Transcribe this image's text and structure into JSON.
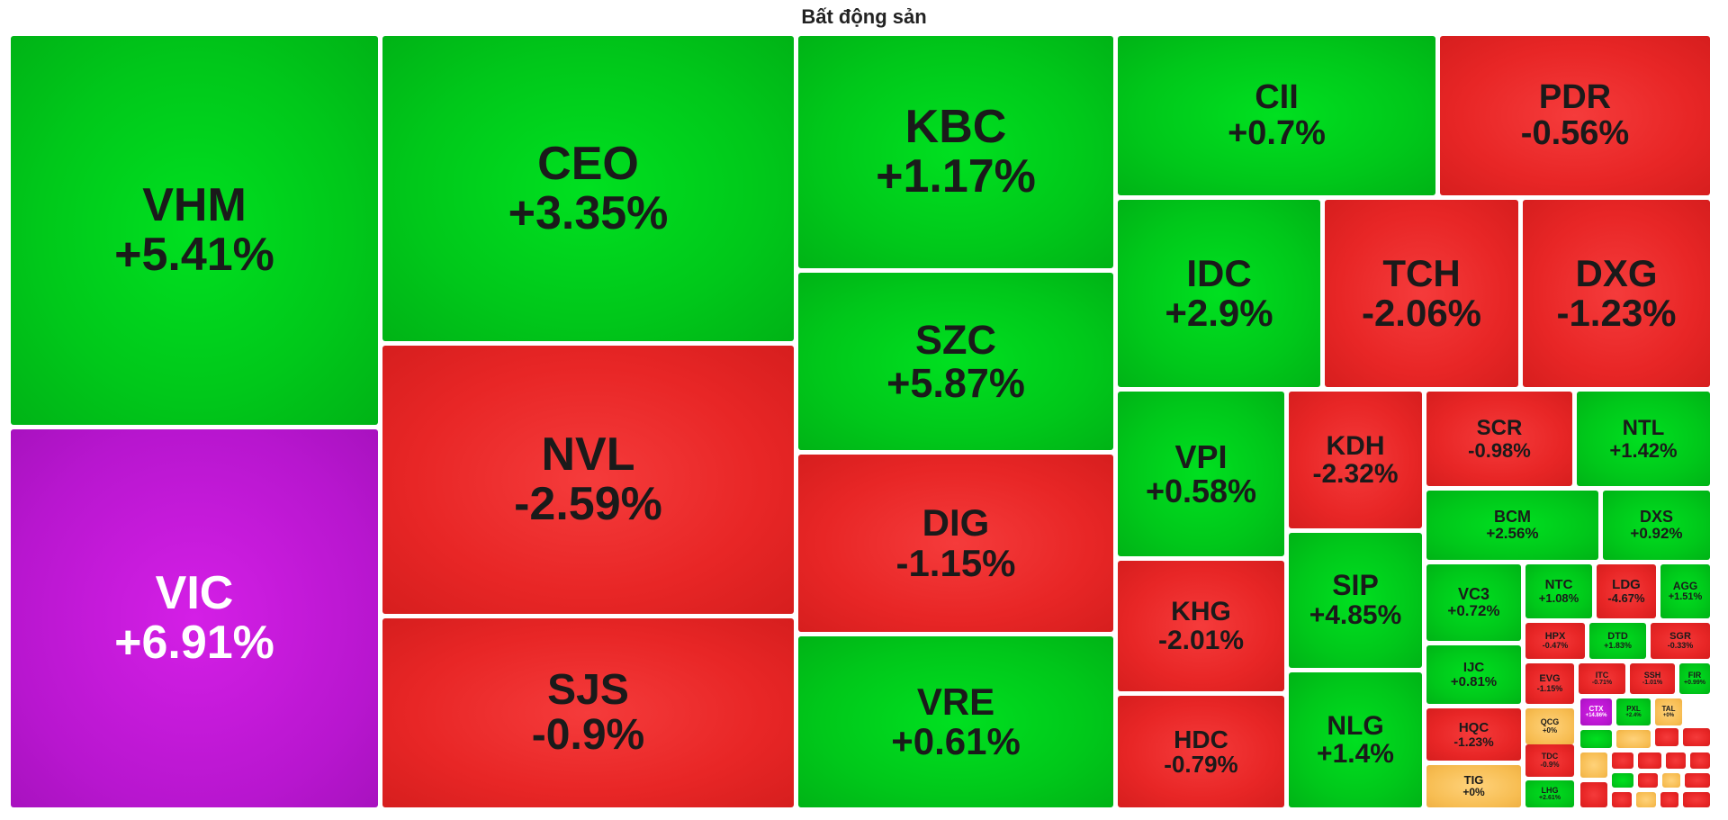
{
  "title": "Bất động sản",
  "colors": {
    "up": "#00c81a",
    "down": "#e82626",
    "ceiling": "#b816cf",
    "reference": "#f7bd52"
  },
  "chart_data": {
    "type": "treemap",
    "title": "Bất động sản",
    "items": [
      {
        "symbol": "VHM",
        "change": "+5.41%",
        "value": 5.41
      },
      {
        "symbol": "VIC",
        "change": "+6.91%",
        "value": 6.91
      },
      {
        "symbol": "CEO",
        "change": "+3.35%",
        "value": 3.35
      },
      {
        "symbol": "NVL",
        "change": "-2.59%",
        "value": -2.59
      },
      {
        "symbol": "SJS",
        "change": "-0.9%",
        "value": -0.9
      },
      {
        "symbol": "KBC",
        "change": "+1.17%",
        "value": 1.17
      },
      {
        "symbol": "SZC",
        "change": "+5.87%",
        "value": 5.87
      },
      {
        "symbol": "DIG",
        "change": "-1.15%",
        "value": -1.15
      },
      {
        "symbol": "VRE",
        "change": "+0.61%",
        "value": 0.61
      },
      {
        "symbol": "CII",
        "change": "+0.7%",
        "value": 0.7
      },
      {
        "symbol": "PDR",
        "change": "-0.56%",
        "value": -0.56
      },
      {
        "symbol": "IDC",
        "change": "+2.9%",
        "value": 2.9
      },
      {
        "symbol": "TCH",
        "change": "-2.06%",
        "value": -2.06
      },
      {
        "symbol": "DXG",
        "change": "-1.23%",
        "value": -1.23
      },
      {
        "symbol": "VPI",
        "change": "+0.58%",
        "value": 0.58
      },
      {
        "symbol": "KDH",
        "change": "-2.32%",
        "value": -2.32
      },
      {
        "symbol": "SCR",
        "change": "-0.98%",
        "value": -0.98
      },
      {
        "symbol": "NTL",
        "change": "+1.42%",
        "value": 1.42
      },
      {
        "symbol": "BCM",
        "change": "+2.56%",
        "value": 2.56
      },
      {
        "symbol": "DXS",
        "change": "+0.92%",
        "value": 0.92
      },
      {
        "symbol": "KHG",
        "change": "-2.01%",
        "value": -2.01
      },
      {
        "symbol": "SIP",
        "change": "+4.85%",
        "value": 4.85
      },
      {
        "symbol": "VC3",
        "change": "+0.72%",
        "value": 0.72
      },
      {
        "symbol": "NTC",
        "change": "+1.08%",
        "value": 1.08
      },
      {
        "symbol": "LDG",
        "change": "-4.67%",
        "value": -4.67
      },
      {
        "symbol": "AGG",
        "change": "+1.51%",
        "value": 1.51
      },
      {
        "symbol": "IJC",
        "change": "+0.81%",
        "value": 0.81
      },
      {
        "symbol": "HPX",
        "change": "-0.47%",
        "value": -0.47
      },
      {
        "symbol": "DTD",
        "change": "+1.83%",
        "value": 1.83
      },
      {
        "symbol": "SGR",
        "change": "-0.33%",
        "value": -0.33
      },
      {
        "symbol": "HDC",
        "change": "-0.79%",
        "value": -0.79
      },
      {
        "symbol": "NLG",
        "change": "+1.4%",
        "value": 1.4
      },
      {
        "symbol": "EVG",
        "change": "-1.15%",
        "value": -1.15
      },
      {
        "symbol": "ITC",
        "change": "-0.71%",
        "value": -0.71
      },
      {
        "symbol": "SSH",
        "change": "-1.01%",
        "value": -1.01
      },
      {
        "symbol": "FIR",
        "change": "+0.99%",
        "value": 0.99
      },
      {
        "symbol": "HQC",
        "change": "-1.23%",
        "value": -1.23
      },
      {
        "symbol": "QCG",
        "change": "+0%",
        "value": 0
      },
      {
        "symbol": "CTX",
        "change": "+14.86%",
        "value": 14.86
      },
      {
        "symbol": "PXL",
        "change": "+2.4%",
        "value": 2.4
      },
      {
        "symbol": "TAL",
        "change": "+0%",
        "value": 0
      },
      {
        "symbol": "TDC",
        "change": "-0.9%",
        "value": -0.9
      },
      {
        "symbol": "TIG",
        "change": "+0%",
        "value": 0
      },
      {
        "symbol": "LHG",
        "change": "+2.61%",
        "value": 2.61
      }
    ]
  }
}
